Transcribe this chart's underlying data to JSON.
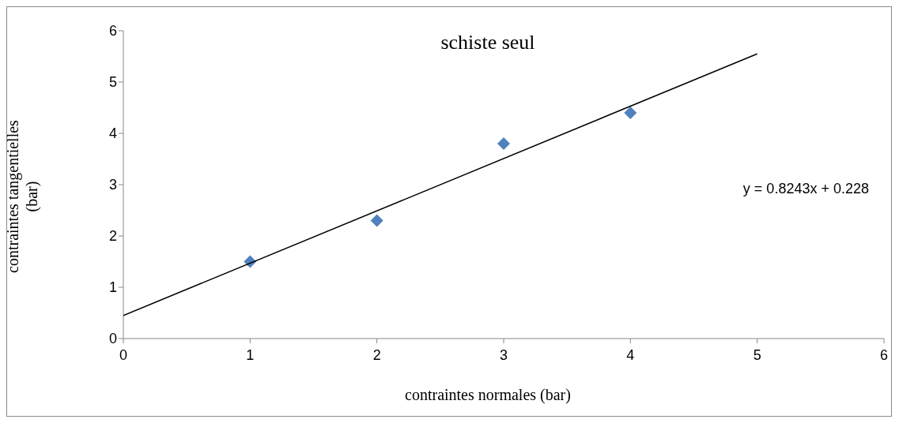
{
  "chart_data": {
    "type": "scatter",
    "title": "schiste seul",
    "xlabel": "contraintes normales (bar)",
    "ylabel": "contraintes tangentielles (bar)",
    "x": [
      1,
      2,
      3,
      4
    ],
    "series": [
      {
        "type": "scatter",
        "color": "#4f81bd",
        "values": [
          1.5,
          2.3,
          3.8,
          4.4
        ],
        "marker": "diamond"
      },
      {
        "type": "line",
        "color": "#000000",
        "x": [
          0,
          5
        ],
        "values": [
          0.45,
          5.55
        ],
        "marker": "none"
      }
    ],
    "annotations": [
      "y = 0.8243x + 0.228"
    ],
    "xlim": [
      0,
      6
    ],
    "xticks": [
      0,
      1,
      2,
      3,
      4,
      5,
      6
    ],
    "ylim": [
      0,
      6
    ],
    "yticks": [
      0,
      1,
      2,
      3,
      4,
      5,
      6
    ],
    "grid": false
  }
}
